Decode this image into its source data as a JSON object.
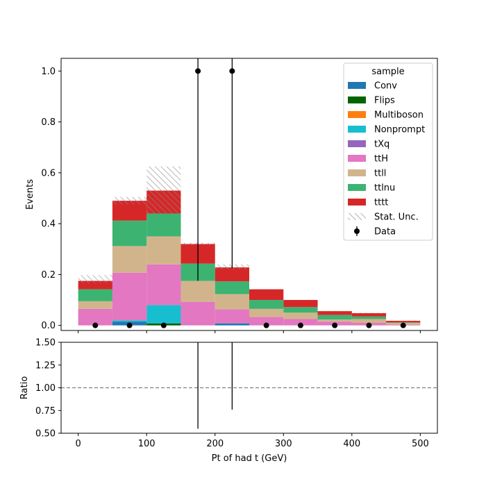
{
  "chart_data": {
    "type": "stacked-histogram-with-ratio",
    "bin_edges": [
      0,
      50,
      100,
      150,
      200,
      250,
      300,
      350,
      400,
      450,
      500
    ],
    "xlabel": "Pt of had t (GeV)",
    "xlim": [
      -25,
      525
    ],
    "x_ticks": [
      "0",
      "100",
      "200",
      "300",
      "400",
      "500"
    ],
    "main": {
      "ylabel": "Events",
      "ylim": [
        -0.02,
        1.05
      ],
      "y_ticks": [
        "0.0",
        "0.2",
        "0.4",
        "0.6",
        "0.8",
        "1.0"
      ]
    },
    "ratio": {
      "ylabel": "Ratio",
      "ylim": [
        0.5,
        1.5
      ],
      "y_ticks": [
        "0.50",
        "0.75",
        "1.00",
        "1.25",
        "1.50"
      ],
      "reference_line": 1.0,
      "error_bars": [
        {
          "x": 175,
          "low": 0.55,
          "high": 1.5
        },
        {
          "x": 225,
          "low": 0.76,
          "high": 1.5
        }
      ]
    },
    "legend": {
      "title": "sample",
      "position": "top-right"
    },
    "series": [
      {
        "name": "Conv",
        "color": "#1f77b4",
        "values": [
          0.0,
          0.015,
          0.0,
          0.0,
          0.008,
          0.0,
          0.0,
          0.0,
          0.0,
          0.0
        ]
      },
      {
        "name": "Flips",
        "color": "#006400",
        "values": [
          0.0,
          0.0,
          0.008,
          0.0,
          0.0,
          0.0,
          0.0,
          0.0,
          0.0,
          0.0
        ]
      },
      {
        "name": "Multiboson",
        "color": "#ff7f0e",
        "values": [
          0.0,
          0.0,
          0.0,
          0.0,
          0.0,
          0.0,
          0.0,
          0.0,
          0.0,
          0.0
        ]
      },
      {
        "name": "Nonprompt",
        "color": "#17becf",
        "values": [
          0.0,
          0.005,
          0.072,
          0.0,
          0.0,
          0.0,
          0.0,
          0.0,
          0.0,
          0.0
        ]
      },
      {
        "name": "tXq",
        "color": "#9467bd",
        "values": [
          0.0,
          0.0,
          0.0,
          0.0,
          0.0,
          0.0,
          0.0,
          0.0,
          0.0,
          0.0
        ]
      },
      {
        "name": "ttH",
        "color": "#e377c2",
        "values": [
          0.065,
          0.187,
          0.16,
          0.092,
          0.055,
          0.033,
          0.025,
          0.015,
          0.01,
          0.003
        ]
      },
      {
        "name": "ttll",
        "color": "#d2b48c",
        "values": [
          0.03,
          0.105,
          0.11,
          0.083,
          0.06,
          0.032,
          0.025,
          0.008,
          0.015,
          0.007
        ]
      },
      {
        "name": "ttlnu",
        "color": "#3cb371",
        "values": [
          0.047,
          0.1,
          0.09,
          0.068,
          0.05,
          0.035,
          0.022,
          0.018,
          0.01,
          0.002
        ]
      },
      {
        "name": "tttt",
        "color": "#d62728",
        "values": [
          0.033,
          0.078,
          0.09,
          0.077,
          0.055,
          0.042,
          0.028,
          0.015,
          0.013,
          0.006
        ]
      }
    ],
    "stat_unc": {
      "name": "Stat. Unc.",
      "low": [
        0.165,
        0.475,
        0.44,
        0.315,
        0.22,
        0.142,
        0.1,
        0.055,
        0.048,
        0.018
      ],
      "high": [
        0.198,
        0.505,
        0.625,
        0.325,
        0.24,
        0.142,
        0.1,
        0.057,
        0.05,
        0.019
      ]
    },
    "data_points": {
      "name": "Data",
      "x": [
        25,
        75,
        125,
        175,
        225,
        275,
        325,
        375,
        425,
        475
      ],
      "y": [
        0,
        0,
        0,
        1,
        1,
        0,
        0,
        0,
        0,
        0
      ],
      "err_low": [
        0,
        0,
        0,
        0.825,
        0.775,
        0,
        0,
        0,
        0,
        0
      ],
      "err_high": [
        0,
        0,
        0,
        1.0,
        1.0,
        0,
        0,
        0,
        0,
        0
      ]
    }
  }
}
